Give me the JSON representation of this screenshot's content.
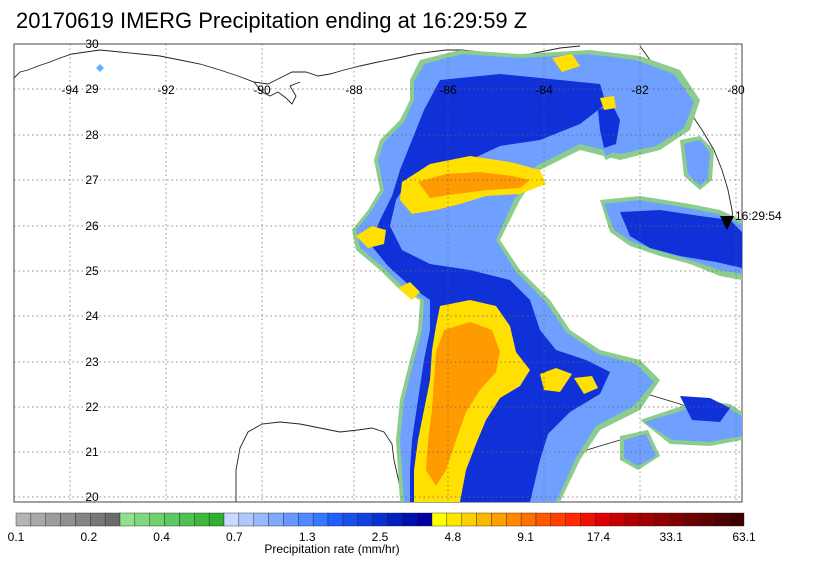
{
  "title": "20170619 IMERG Precipitation ending at 16:29:59 Z",
  "longitude_ticks": [
    "-94",
    "-92",
    "-90",
    "-88",
    "-86",
    "-84",
    "-82",
    "-80"
  ],
  "latitude_ticks": [
    "30",
    "29",
    "28",
    "27",
    "26",
    "25",
    "24",
    "23",
    "22",
    "21",
    "20"
  ],
  "satellite_marker_time": "16:29:54",
  "colorbar": {
    "label": "Precipitation rate (mm/hr)",
    "tick_labels": [
      "0.1",
      "0.2",
      "0.4",
      "0.7",
      "1.3",
      "2.5",
      "4.8",
      "9.1",
      "17.4",
      "33.1",
      "63.1"
    ],
    "colors": [
      "#b4b4b4",
      "#a8a8a8",
      "#9c9c9c",
      "#909090",
      "#848484",
      "#787878",
      "#6c6c6c",
      "#90e090",
      "#80d880",
      "#70d070",
      "#60c860",
      "#50c050",
      "#40b840",
      "#30b030",
      "#c8d8ff",
      "#b0c8ff",
      "#98b8ff",
      "#80a8ff",
      "#6898ff",
      "#5088ff",
      "#3878ff",
      "#2060ff",
      "#1850f0",
      "#1040e0",
      "#0830d0",
      "#0020c0",
      "#0010b0",
      "#0000a0",
      "#ffff00",
      "#ffe800",
      "#ffd000",
      "#ffb800",
      "#ffa000",
      "#ff8800",
      "#ff7000",
      "#ff5800",
      "#ff4000",
      "#ff2800",
      "#f01000",
      "#e00000",
      "#c80000",
      "#b00000",
      "#a00000",
      "#900000",
      "#800000",
      "#700000",
      "#600000",
      "#500000",
      "#400000"
    ]
  }
}
